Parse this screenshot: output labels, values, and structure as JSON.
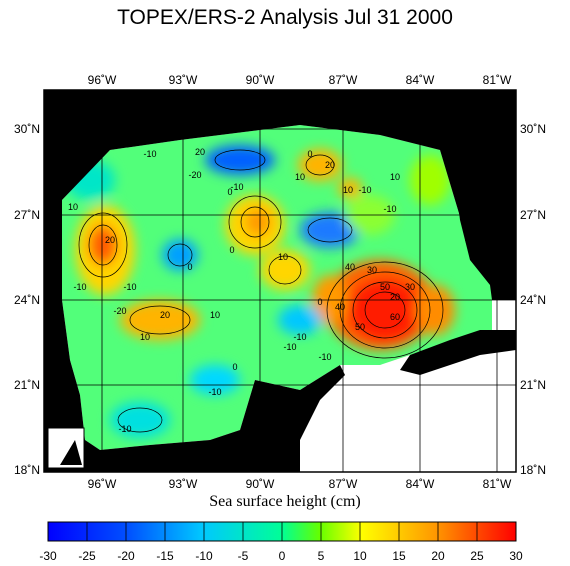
{
  "title": "TOPEX/ERS-2 Analysis Jul 31 2000",
  "colorbar_label": "Sea surface height (cm)",
  "colorbar_ticks": [
    "-30",
    "-25",
    "-20",
    "-15",
    "-10",
    "-5",
    "0",
    "5",
    "10",
    "15",
    "20",
    "25",
    "30"
  ],
  "colorbar_range": [
    -30,
    30
  ],
  "lon_ticks_top": [
    "96˚W",
    "93˚W",
    "90˚W",
    "87˚W",
    "84˚W",
    "81˚W"
  ],
  "lon_ticks_bottom": [
    "96˚W",
    "93˚W",
    "90˚W",
    "87˚W",
    "84˚W",
    "81˚W"
  ],
  "lat_ticks_left": [
    "30˚N",
    "27˚N",
    "24˚N",
    "21˚N",
    "18˚N"
  ],
  "lat_ticks_right": [
    "30˚N",
    "27˚N",
    "24˚N",
    "21˚N",
    "18˚N"
  ],
  "contour_labels": [
    "20",
    "-10",
    "10",
    "20",
    "-20",
    "-10",
    "0",
    "10",
    "0",
    "20",
    "10",
    "-10",
    "10",
    "-10",
    "10",
    "0",
    "-10",
    "0",
    "10",
    "-20",
    "-10",
    "10",
    "20",
    "40",
    "30",
    "50",
    "60",
    "40",
    "50",
    "20",
    "30",
    "-10",
    "0",
    "-10",
    "-10",
    "0",
    "-10",
    "-10"
  ],
  "colors": {
    "land": "#000000",
    "no_data": "#ffffff",
    "colormap": [
      "#0000ff",
      "#0066ff",
      "#00b4ff",
      "#00e6d2",
      "#00ff80",
      "#8cff00",
      "#ffff00",
      "#ffb400",
      "#ff6400",
      "#ff0000"
    ]
  }
}
